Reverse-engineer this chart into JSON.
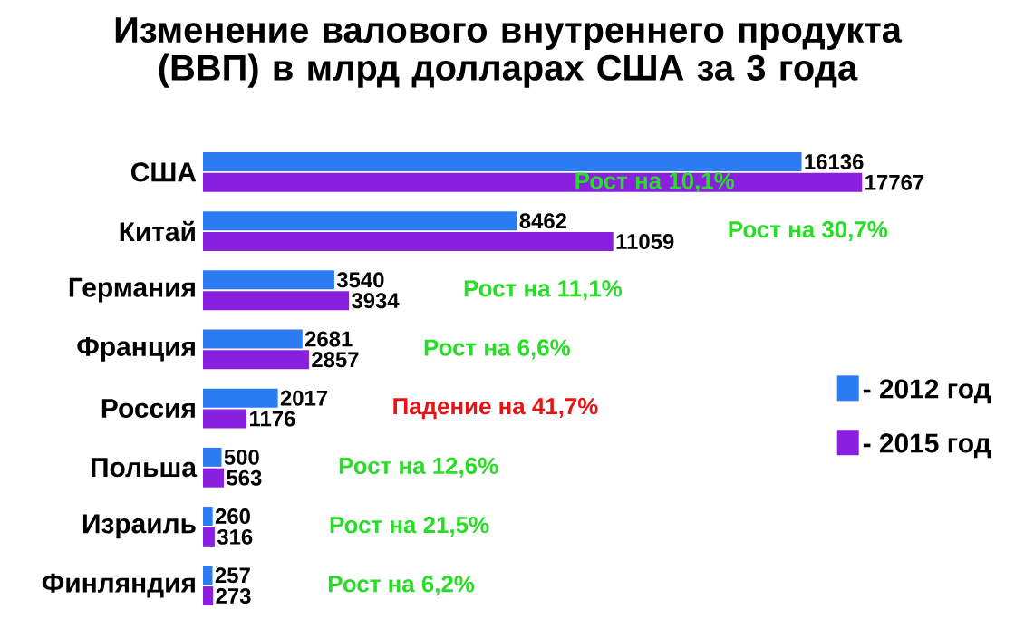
{
  "chart_data": {
    "type": "bar",
    "orientation": "horizontal",
    "title": "Изменение валового внутреннего продукта (ВВП) в млрд долларах США за 3 года",
    "categories": [
      "США",
      "Китай",
      "Германия",
      "Франция",
      "Россия",
      "Польша",
      "Израиль",
      "Финляндия"
    ],
    "series": [
      {
        "name": "- 2012 год",
        "color": "#2b7cf2",
        "values": [
          16136,
          8462,
          3540,
          2681,
          2017,
          500,
          260,
          257
        ]
      },
      {
        "name": "- 2015 год",
        "color": "#8a1fe0",
        "values": [
          17767,
          11059,
          3934,
          2857,
          1176,
          563,
          316,
          273
        ]
      }
    ],
    "data_labels": true,
    "legend": "right",
    "annotations": [
      "Рост на 10,1%",
      "Рост на 30,7%",
      "Рост на 11,1%",
      "Рост на 6,6%",
      "Падение на 41,7%",
      "Рост на 12,6%",
      "Рост на 21,5%",
      "Рост на 6,2%"
    ]
  }
}
